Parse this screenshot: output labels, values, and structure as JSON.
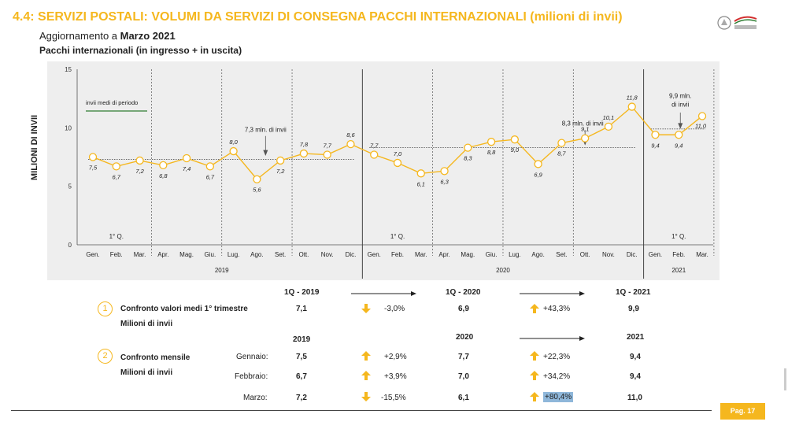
{
  "header": {
    "title": "4.4: SERVIZI POSTALI: VOLUMI DA SERVIZI DI CONSEGNA PACCHI INTERNAZIONALI (milioni di invii)",
    "update_prefix": "Aggiornamento a ",
    "update_value": "Marzo 2021",
    "chart_subtitle": "Pacchi internazionali (in ingresso + in uscita)"
  },
  "chart_data": {
    "type": "line",
    "ylabel": "MILIONI DI INVII",
    "ylim": [
      0,
      15
    ],
    "yticks": [
      "0",
      "5",
      "10",
      "15"
    ],
    "categories": [
      "Gen.",
      "Feb.",
      "Mar.",
      "Apr.",
      "Mag.",
      "Giu.",
      "Lug.",
      "Ago.",
      "Set.",
      "Ott.",
      "Nov.",
      "Dic.",
      "Gen.",
      "Feb.",
      "Mar.",
      "Apr.",
      "Mag.",
      "Giu.",
      "Lug.",
      "Ago.",
      "Set.",
      "Ott.",
      "Nov.",
      "Dic.",
      "Gen.",
      "Feb.",
      "Mar."
    ],
    "values": [
      7.5,
      6.7,
      7.2,
      6.8,
      7.4,
      6.7,
      8.0,
      5.6,
      7.2,
      7.8,
      7.7,
      8.6,
      7.7,
      7.0,
      6.1,
      6.3,
      8.3,
      8.8,
      9.0,
      6.9,
      8.7,
      9.1,
      10.1,
      11.8,
      9.4,
      9.4,
      11.0
    ],
    "data_labels": [
      "7,5",
      "6,7",
      "7,2",
      "6,8",
      "7,4",
      "6,7",
      "8,0",
      "5,6",
      "7,2",
      "7,8",
      "7,7",
      "8,6",
      "7,7",
      "7,0",
      "6,1",
      "6,3",
      "8,3",
      "8,8",
      "9,0",
      "6,9",
      "8,7",
      "9,1",
      "10,1",
      "11,8",
      "9,4",
      "9,4",
      "11,0"
    ],
    "years": [
      "2019",
      "2020",
      "2021"
    ],
    "quarter_labels": [
      "1° Q.",
      "1° Q.",
      "1° Q."
    ],
    "legend": "invii medi di periodo",
    "period_averages": [
      {
        "label": "7,3 mln. di invii",
        "value": 7.3
      },
      {
        "label": "8,3 mln. di invii",
        "value": 8.3
      },
      {
        "label_line1": "9,9 mln.",
        "label_line2": "di invii",
        "value": 9.9
      }
    ],
    "colors": {
      "line": "#F5B71E",
      "average": "#555555",
      "legend_line": "#2E7D32",
      "background": "#EEEEEE"
    }
  },
  "comparison": {
    "section1": {
      "number": "1",
      "label": "Confronto valori medi 1° trimestre",
      "sublabel": "Milioni di invii",
      "headers": [
        "1Q - 2019",
        "1Q - 2020",
        "1Q - 2021"
      ],
      "values": [
        "7,1",
        "6,9",
        "9,9"
      ],
      "changes": [
        "-3,0%",
        "+43,3%"
      ]
    },
    "section2": {
      "number": "2",
      "label": "Confronto mensile",
      "sublabel": "Milioni di invii",
      "headers": [
        "2019",
        "2020",
        "2021"
      ],
      "rows": [
        {
          "month": "Gennaio:",
          "v2019": "7,5",
          "c1": "+2,9%",
          "v2020": "7,7",
          "c2": "+22,3%",
          "v2021": "9,4"
        },
        {
          "month": "Febbraio:",
          "v2019": "6,7",
          "c1": "+3,9%",
          "v2020": "7,0",
          "c2": "+34,2%",
          "v2021": "9,4"
        },
        {
          "month": "Marzo:",
          "v2019": "7,2",
          "c1": "-15,5%",
          "v2020": "6,1",
          "c2": "+80,4%",
          "v2021": "11,0"
        }
      ]
    }
  },
  "footer": {
    "page": "Pag. 17"
  }
}
